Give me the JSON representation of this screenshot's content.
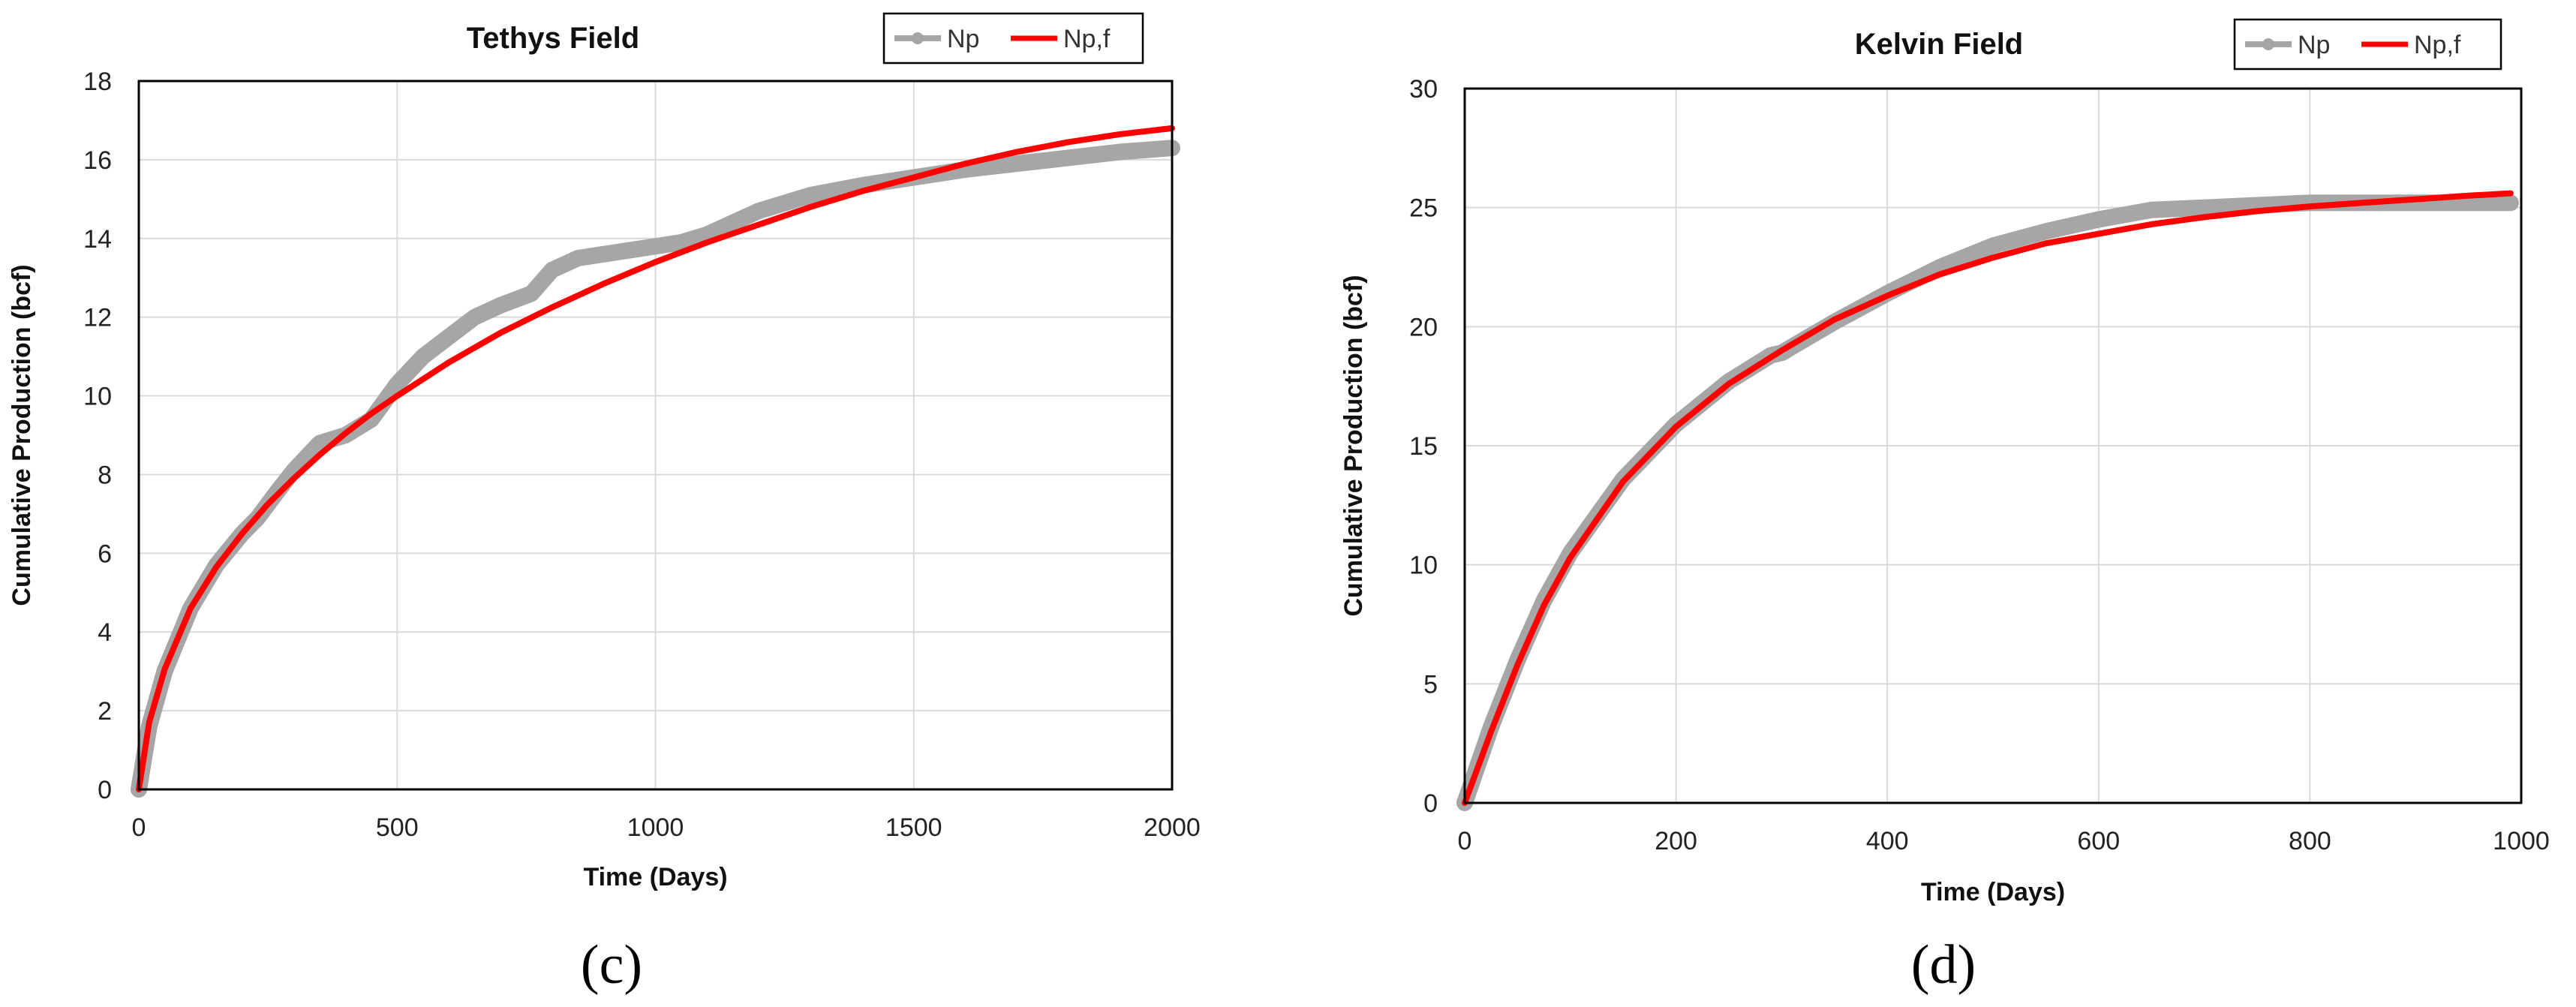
{
  "colors": {
    "np": "#a6a6a6",
    "npf": "#ff0000"
  },
  "chart_data": [
    {
      "type": "line",
      "title": "Tethys Field",
      "xlabel": "Time (Days)",
      "ylabel": "Cumulative Production  (bcf)",
      "xlim": [
        0,
        2000
      ],
      "ylim": [
        0,
        18
      ],
      "xticks": [
        0,
        500,
        1000,
        1500,
        2000
      ],
      "yticks": [
        0,
        2,
        4,
        6,
        8,
        10,
        12,
        14,
        16,
        18
      ],
      "legend_position": "top-right",
      "panel_label": "(c)",
      "series": [
        {
          "name": "Np",
          "x": [
            0,
            20,
            50,
            100,
            150,
            200,
            230,
            270,
            300,
            350,
            400,
            450,
            500,
            550,
            600,
            650,
            700,
            760,
            800,
            850,
            900,
            950,
            1000,
            1050,
            1100,
            1150,
            1200,
            1300,
            1400,
            1500,
            1600,
            1700,
            1800,
            1900,
            2000
          ],
          "y": [
            0,
            1.6,
            3.0,
            4.6,
            5.7,
            6.5,
            6.9,
            7.6,
            8.1,
            8.8,
            9.0,
            9.4,
            10.3,
            11.0,
            11.5,
            12.0,
            12.3,
            12.6,
            13.2,
            13.5,
            13.6,
            13.7,
            13.8,
            13.9,
            14.1,
            14.4,
            14.7,
            15.1,
            15.35,
            15.55,
            15.75,
            15.9,
            16.05,
            16.2,
            16.3
          ]
        },
        {
          "name": "Np,f",
          "x": [
            0,
            20,
            50,
            100,
            150,
            200,
            250,
            300,
            350,
            400,
            450,
            500,
            600,
            700,
            800,
            900,
            1000,
            1100,
            1200,
            1300,
            1400,
            1500,
            1600,
            1700,
            1800,
            1900,
            2000
          ],
          "y": [
            0,
            1.7,
            3.05,
            4.6,
            5.65,
            6.5,
            7.25,
            7.9,
            8.5,
            9.05,
            9.55,
            10.0,
            10.85,
            11.6,
            12.25,
            12.85,
            13.4,
            13.9,
            14.35,
            14.8,
            15.2,
            15.55,
            15.9,
            16.2,
            16.45,
            16.65,
            16.8
          ]
        }
      ]
    },
    {
      "type": "line",
      "title": "Kelvin Field",
      "xlabel": "Time (Days)",
      "ylabel": "Cumulative Production  (bcf)",
      "xlim": [
        0,
        1000
      ],
      "ylim": [
        0,
        30
      ],
      "xticks": [
        0,
        200,
        400,
        600,
        800,
        1000
      ],
      "yticks": [
        0,
        5,
        10,
        15,
        20,
        25,
        30
      ],
      "legend_position": "top-right",
      "panel_label": "(d)",
      "series": [
        {
          "name": "Np",
          "x": [
            0,
            25,
            50,
            75,
            100,
            150,
            200,
            250,
            290,
            300,
            350,
            400,
            450,
            500,
            550,
            600,
            650,
            700,
            750,
            800,
            850,
            900,
            950,
            990
          ],
          "y": [
            0,
            3.2,
            6.0,
            8.5,
            10.5,
            13.6,
            15.9,
            17.7,
            18.8,
            18.9,
            20.2,
            21.4,
            22.5,
            23.4,
            24.0,
            24.5,
            24.9,
            25.0,
            25.1,
            25.2,
            25.2,
            25.2,
            25.2,
            25.2
          ]
        },
        {
          "name": "Np,f",
          "x": [
            0,
            25,
            50,
            75,
            100,
            150,
            200,
            250,
            300,
            350,
            400,
            450,
            500,
            550,
            600,
            650,
            700,
            750,
            800,
            850,
            900,
            950,
            990
          ],
          "y": [
            0,
            3.0,
            5.8,
            8.3,
            10.3,
            13.5,
            15.8,
            17.6,
            19.0,
            20.3,
            21.3,
            22.2,
            22.9,
            23.5,
            23.9,
            24.3,
            24.6,
            24.85,
            25.05,
            25.2,
            25.35,
            25.5,
            25.6
          ]
        }
      ]
    }
  ]
}
